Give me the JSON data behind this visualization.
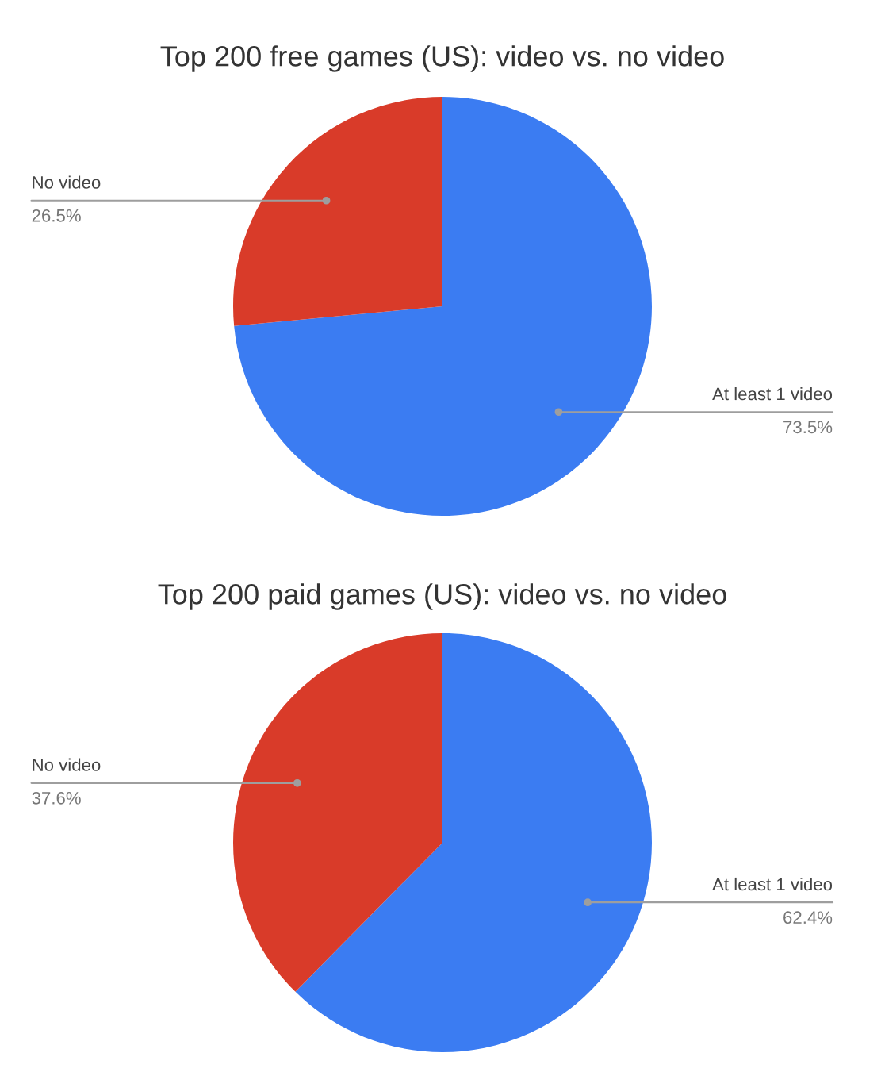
{
  "chart_data": [
    {
      "type": "pie",
      "title": "Top 200 free games (US): video vs. no video",
      "categories": [
        "At least 1 video",
        "No video"
      ],
      "values": [
        73.5,
        26.5
      ],
      "value_labels": [
        "73.5%",
        "26.5%"
      ],
      "colors": [
        "#3b7cf2",
        "#d93b29"
      ]
    },
    {
      "type": "pie",
      "title": "Top 200 paid games (US): video vs. no video",
      "categories": [
        "At least 1 video",
        "No video"
      ],
      "values": [
        62.4,
        37.6
      ],
      "value_labels": [
        "62.4%",
        "37.6%"
      ],
      "colors": [
        "#3b7cf2",
        "#d93b29"
      ]
    }
  ]
}
